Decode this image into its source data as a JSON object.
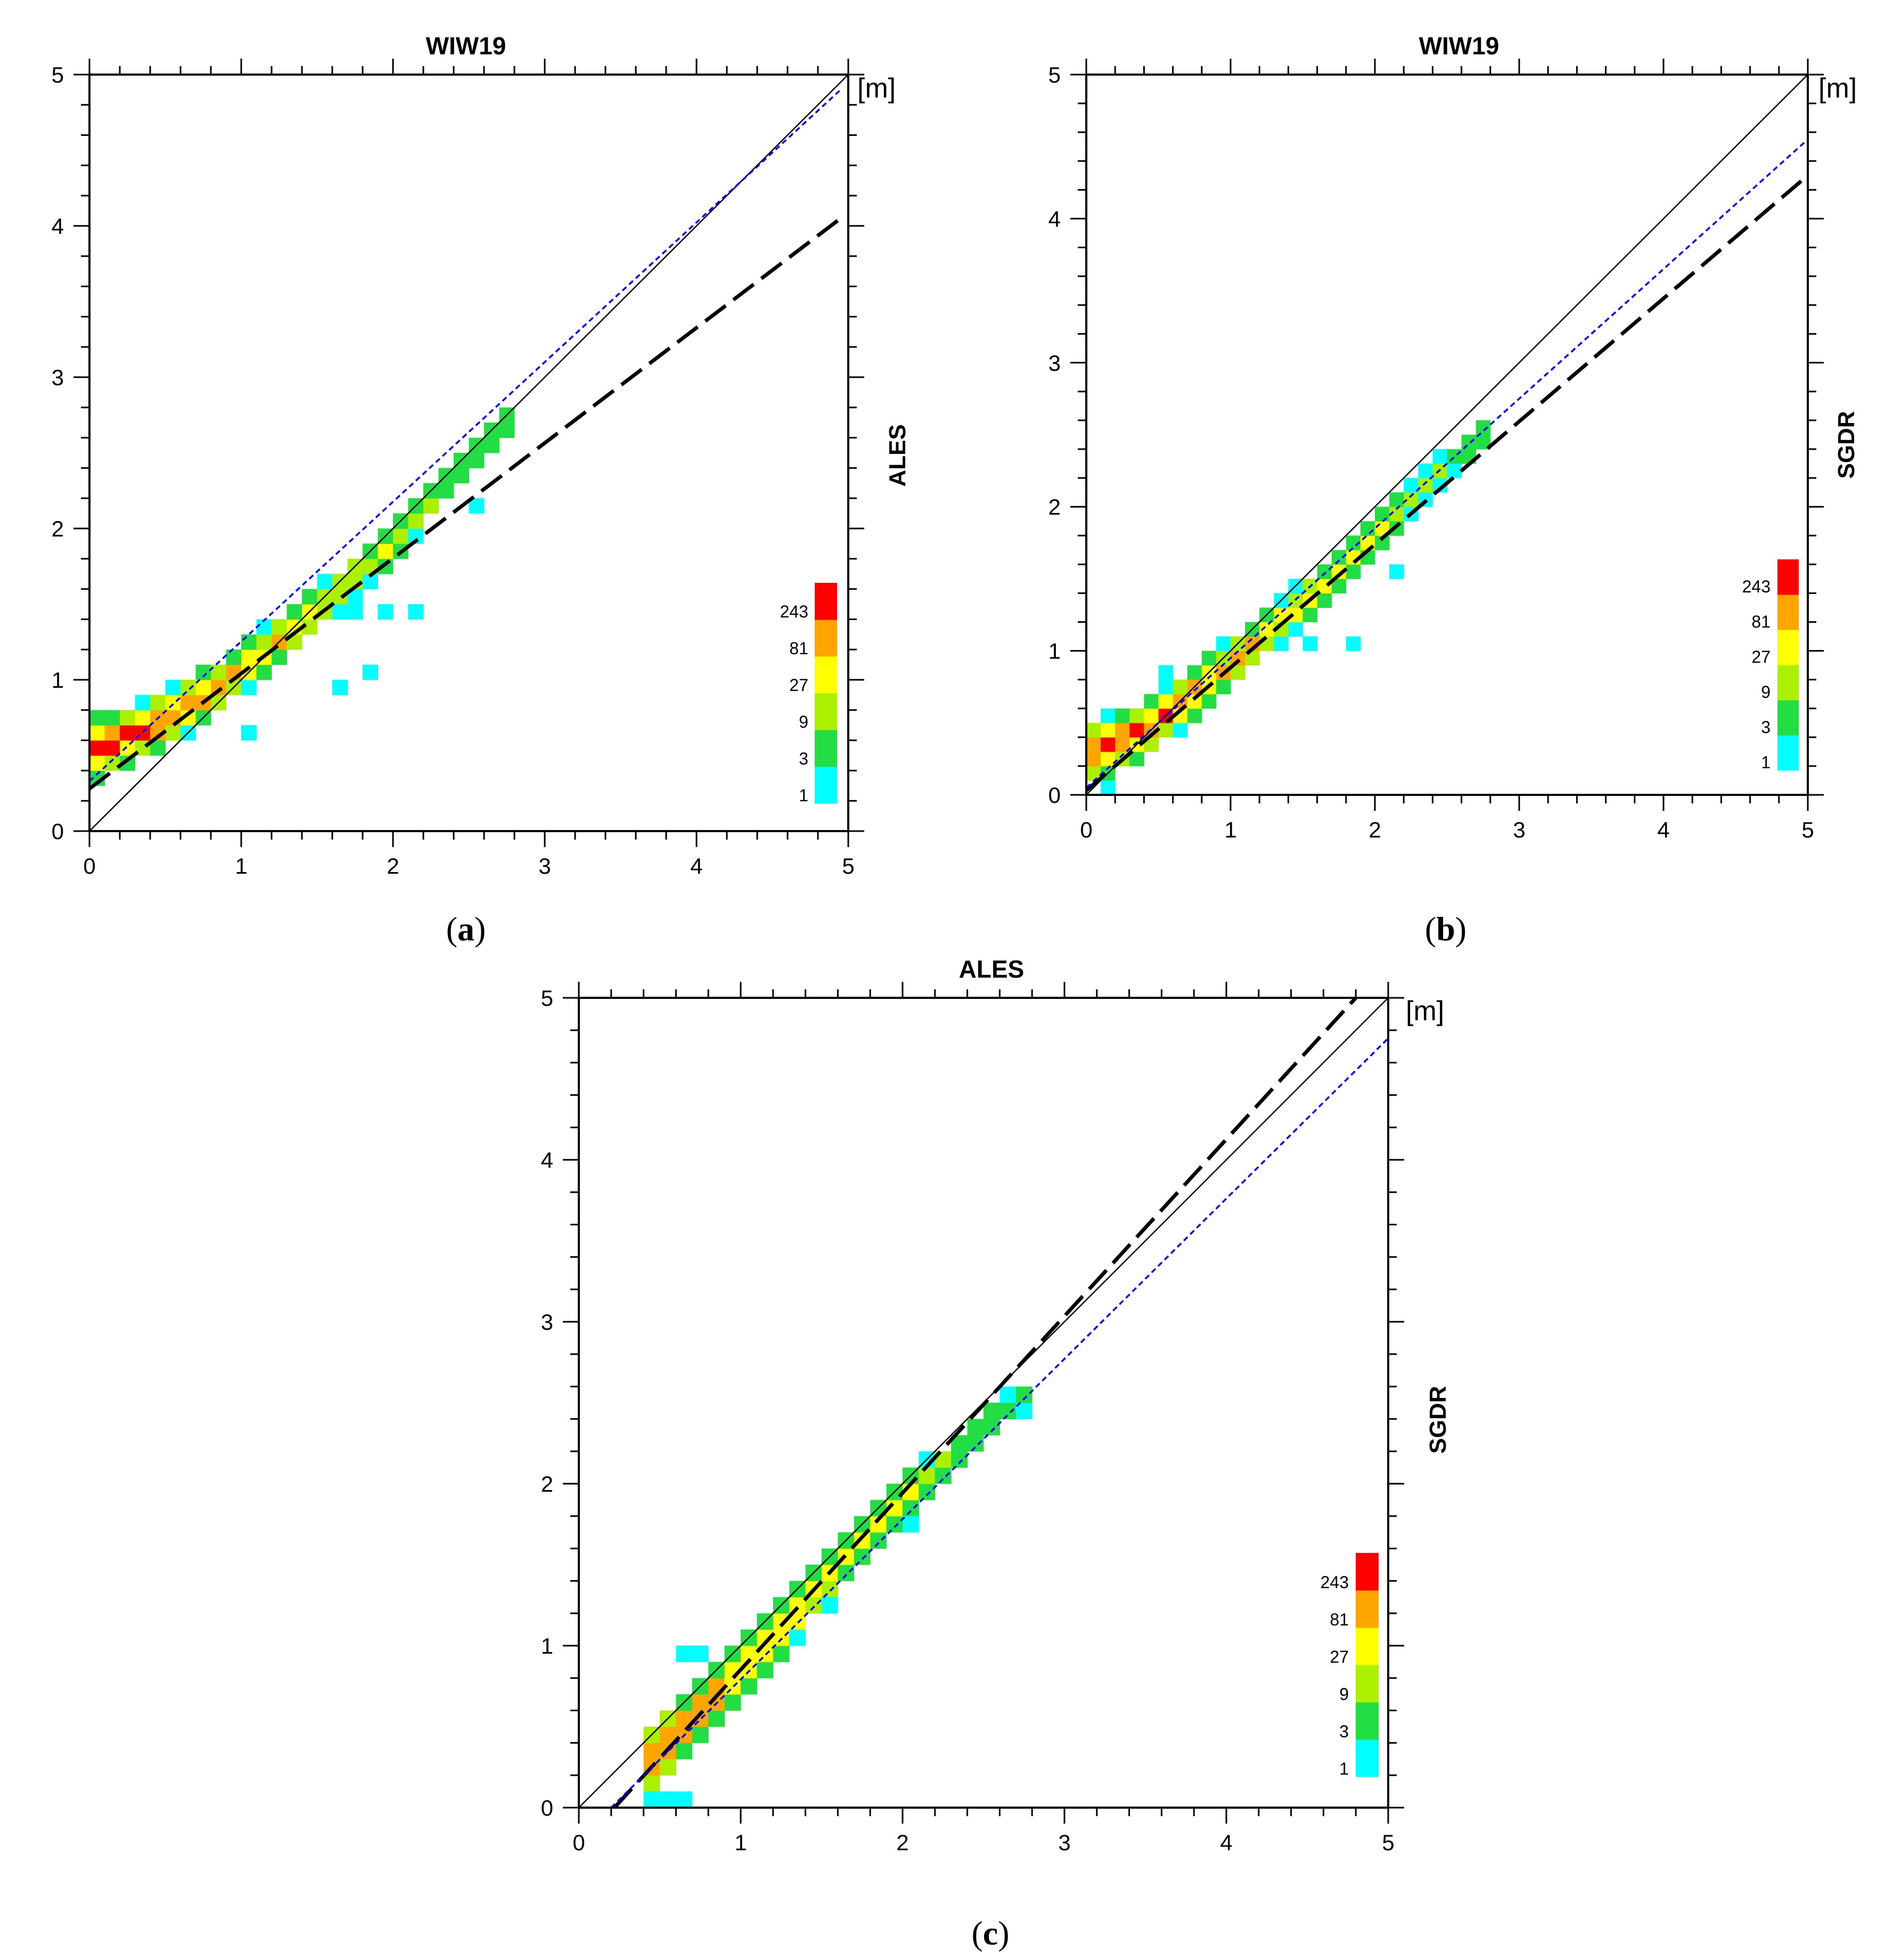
{
  "figure": {
    "background": "#ffffff"
  },
  "colorbar": {
    "levels": [
      "1",
      "3",
      "9",
      "27",
      "81",
      "243"
    ],
    "colors": [
      "#00ffff",
      "#22dd44",
      "#aaf000",
      "#ffff00",
      "#ffa500",
      "#ff0000"
    ]
  },
  "lines": {
    "one_to_one": "#000000",
    "fit_dashed": "#000000",
    "fit_dotted": "#0000ff"
  },
  "chart_data": [
    {
      "id": "a",
      "type": "heatmap",
      "title": "WIW19",
      "caption_letter": "a",
      "xlabel": "",
      "ylabel": "ALES",
      "unit": "[m]",
      "xlim": [
        0,
        5
      ],
      "ylim": [
        0,
        5
      ],
      "xticks": [
        "0",
        "1",
        "2",
        "3",
        "4",
        "5"
      ],
      "yticks": [
        "0",
        "1",
        "2",
        "3",
        "4",
        "5"
      ],
      "lines": [
        {
          "name": "1:1",
          "style": "solid",
          "x": [
            0,
            5
          ],
          "y": [
            0,
            5
          ]
        },
        {
          "name": "fit-dashed",
          "style": "long-dash",
          "x": [
            0,
            4.95
          ],
          "y": [
            0.28,
            4.05
          ]
        },
        {
          "name": "fit-dotted",
          "style": "dotted-blue",
          "x": [
            0,
            4.95
          ],
          "y": [
            0.33,
            4.9
          ]
        }
      ],
      "band": {
        "x_points": [
          0.05,
          0.4,
          0.8,
          1.2,
          1.6,
          2.0,
          2.4,
          2.8
        ],
        "y_points": [
          0.55,
          0.68,
          0.92,
          1.22,
          1.55,
          1.9,
          2.35,
          2.75
        ]
      },
      "outliers": [
        [
          1.65,
          0.95
        ],
        [
          1.85,
          1.05
        ],
        [
          1.95,
          1.45
        ],
        [
          2.15,
          1.45
        ],
        [
          2.55,
          2.15
        ],
        [
          1.05,
          0.65
        ],
        [
          1.75,
          1.45
        ]
      ]
    },
    {
      "id": "b",
      "type": "heatmap",
      "title": "WIW19",
      "caption_letter": "b",
      "xlabel": "",
      "ylabel": "SGDR",
      "unit": "[m]",
      "xlim": [
        0,
        5
      ],
      "ylim": [
        0,
        5
      ],
      "xticks": [
        "0",
        "1",
        "2",
        "3",
        "4",
        "5"
      ],
      "yticks": [
        "0",
        "1",
        "2",
        "3",
        "4",
        "5"
      ],
      "lines": [
        {
          "name": "1:1",
          "style": "solid",
          "x": [
            0,
            5
          ],
          "y": [
            0,
            5
          ]
        },
        {
          "name": "fit-dashed",
          "style": "long-dash",
          "x": [
            0,
            5
          ],
          "y": [
            0.03,
            4.3
          ]
        },
        {
          "name": "fit-dotted",
          "style": "dotted-blue",
          "x": [
            0,
            5
          ],
          "y": [
            0.05,
            4.55
          ]
        }
      ],
      "band": {
        "x_points": [
          0.05,
          0.4,
          0.8,
          1.2,
          1.6,
          2.0,
          2.4,
          2.8
        ],
        "y_points": [
          0.3,
          0.45,
          0.75,
          1.08,
          1.42,
          1.8,
          2.2,
          2.55
        ]
      },
      "outliers": [
        [
          1.55,
          1.05
        ],
        [
          1.85,
          1.05
        ],
        [
          2.15,
          1.55
        ],
        [
          0.15,
          0.05
        ],
        [
          0.55,
          0.85
        ]
      ]
    },
    {
      "id": "c",
      "type": "heatmap",
      "title": "ALES",
      "caption_letter": "c",
      "xlabel": "",
      "ylabel": "SGDR",
      "unit": "[m]",
      "xlim": [
        0,
        5
      ],
      "ylim": [
        0,
        5
      ],
      "xticks": [
        "0",
        "1",
        "2",
        "3",
        "4",
        "5"
      ],
      "yticks": [
        "0",
        "1",
        "2",
        "3",
        "4",
        "5"
      ],
      "lines": [
        {
          "name": "1:1",
          "style": "solid",
          "x": [
            0,
            5
          ],
          "y": [
            0,
            5
          ]
        },
        {
          "name": "fit-dashed",
          "style": "long-dash",
          "x": [
            0.22,
            4.8
          ],
          "y": [
            0.0,
            5.0
          ]
        },
        {
          "name": "fit-dotted",
          "style": "dotted-blue",
          "x": [
            0.2,
            5
          ],
          "y": [
            0.0,
            4.75
          ]
        }
      ],
      "band": {
        "x_points": [
          0.45,
          0.7,
          1.0,
          1.3,
          1.6,
          2.0,
          2.4,
          2.75
        ],
        "y_points": [
          0.3,
          0.55,
          0.85,
          1.15,
          1.5,
          1.9,
          2.25,
          2.55
        ]
      },
      "outliers": [
        [
          0.65,
          0.95
        ],
        [
          0.75,
          0.95
        ],
        [
          1.55,
          1.25
        ],
        [
          2.05,
          1.75
        ],
        [
          0.45,
          0.05
        ],
        [
          0.55,
          0.05
        ],
        [
          0.65,
          0.05
        ]
      ]
    }
  ]
}
